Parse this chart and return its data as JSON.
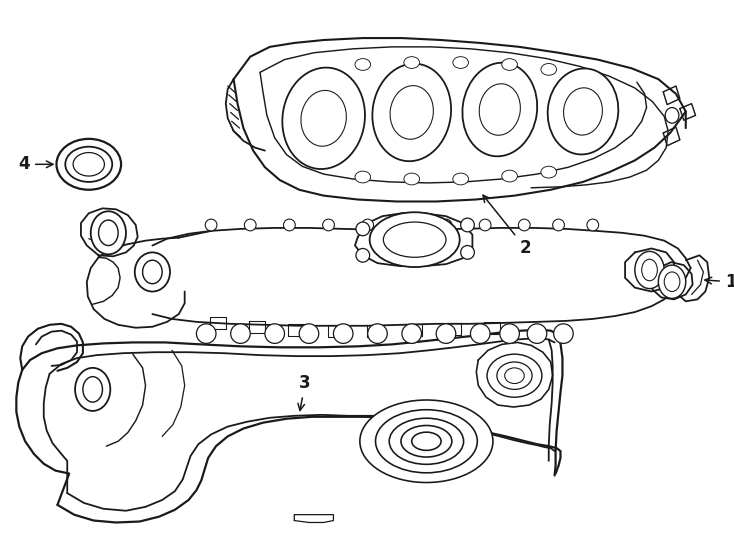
{
  "bg_color": "#ffffff",
  "line_color": "#1a1a1a",
  "lw": 1.3,
  "fig_w": 7.34,
  "fig_h": 5.4,
  "dpi": 100
}
